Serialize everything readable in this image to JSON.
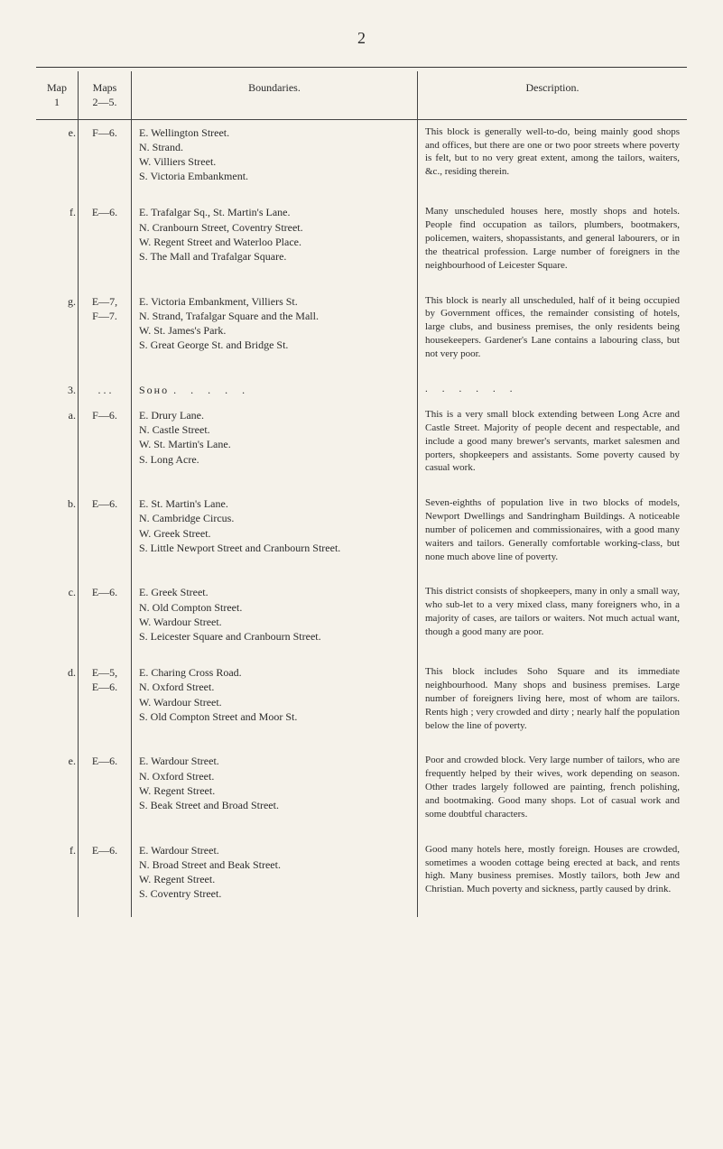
{
  "page_number": "2",
  "headers": {
    "map1": "Map\n1",
    "maps25": "Maps\n2—5.",
    "boundaries": "Boundaries.",
    "description": "Description."
  },
  "rows": [
    {
      "letter": "e.",
      "maps": "F—6.",
      "bound": [
        "E. Wellington Street.",
        "N. Strand.",
        "W. Villiers Street.",
        "S. Victoria Embankment."
      ],
      "desc": "This block is generally well-to-do, being mainly good shops and offices, but there are one or two poor streets where poverty is felt, but to no very great extent, among the tailors, waiters, &c., residing therein."
    },
    {
      "letter": "f.",
      "maps": "E—6.",
      "bound": [
        "E. Trafalgar Sq., St. Martin's Lane.",
        "N. Cranbourn Street, Coventry Street.",
        "W. Regent Street and Waterloo Place.",
        "S. The Mall and Trafalgar Square."
      ],
      "desc": "Many unscheduled houses here, mostly shops and hotels. People find occupation as tailors, plumbers, bootmakers, policemen, waiters, shopassistants, and general labourers, or in the theatrical profession. Large number of foreigners in the neighbourhood of Leicester Square."
    },
    {
      "letter": "g.",
      "maps": "E—7,\nF—7.",
      "bound": [
        "E. Victoria Embankment, Villiers St.",
        "N. Strand, Trafalgar Square and the Mall.",
        "W. St. James's Park.",
        "S. Great George St. and Bridge St."
      ],
      "desc": "This block is nearly all unscheduled, half of it being occupied by Government offices, the remainder consisting of hotels, large clubs, and business premises, the only residents being housekeepers. Gardener's Lane contains a labouring class, but not very poor."
    },
    {
      "section": true,
      "letter_outer": "3.",
      "letter": "a.",
      "maps_outer": ". . .",
      "maps": "F—6.",
      "section_title": "Sᴏʜᴏ",
      "bound": [
        "E. Drury Lane.",
        "N. Castle Street.",
        "W. St. Martin's Lane.",
        "S. Long Acre."
      ],
      "desc": "This is a very small block extending between Long Acre and Castle Street. Majority of people decent and respectable, and include a good many brewer's servants, market salesmen and porters, shopkeepers and assistants. Some poverty caused by casual work."
    },
    {
      "letter": "b.",
      "maps": "E—6.",
      "bound": [
        "E. St. Martin's Lane.",
        "N. Cambridge Circus.",
        "W. Greek Street.",
        "S. Little Newport Street and Cranbourn Street."
      ],
      "desc": "Seven-eighths of population live in two blocks of models, Newport Dwellings and Sandringham Buildings. A noticeable number of policemen and commissionaires, with a good many waiters and tailors. Generally comfortable working-class, but none much above line of poverty."
    },
    {
      "letter": "c.",
      "maps": "E—6.",
      "bound": [
        "E. Greek Street.",
        "N. Old Compton Street.",
        "W. Wardour Street.",
        "S. Leicester Square and Cranbourn Street."
      ],
      "desc": "This district consists of shopkeepers, many in only a small way, who sub-let to a very mixed class, many foreigners who, in a majority of cases, are tailors or waiters. Not much actual want, though a good many are poor."
    },
    {
      "letter": "d.",
      "maps": "E—5,\nE—6.",
      "bound": [
        "E. Charing Cross Road.",
        "N. Oxford Street.",
        "W. Wardour Street.",
        "S. Old Compton Street and Moor St."
      ],
      "desc": "This block includes Soho Square and its immediate neighbourhood. Many shops and business premises. Large number of foreigners living here, most of whom are tailors. Rents high ; very crowded and dirty ; nearly half the population below the line of poverty."
    },
    {
      "letter": "e.",
      "maps": "E—6.",
      "bound": [
        "E. Wardour Street.",
        "N. Oxford Street.",
        "W. Regent Street.",
        "S. Beak Street and Broad Street."
      ],
      "desc": "Poor and crowded block. Very large number of tailors, who are frequently helped by their wives, work depending on season. Other trades largely followed are painting, french polishing, and bootmaking. Good many shops. Lot of casual work and some doubtful characters."
    },
    {
      "letter": "f.",
      "maps": "E—6.",
      "bound": [
        "E. Wardour Street.",
        "N. Broad Street and Beak Street.",
        "W. Regent Street.",
        "S. Coventry Street."
      ],
      "desc": "Good many hotels here, mostly foreign. Houses are crowded, sometimes a wooden cottage being erected at back, and rents high. Many business premises. Mostly tailors, both Jew and Christian. Much poverty and sickness, partly caused by drink."
    }
  ]
}
